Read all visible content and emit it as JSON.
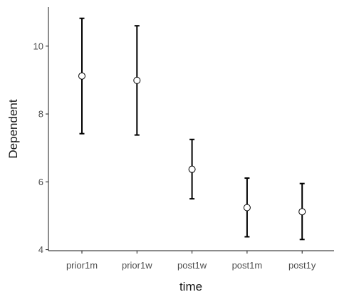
{
  "chart_data": {
    "type": "errorbar",
    "xlabel": "time",
    "ylabel": "Dependent",
    "categories": [
      "prior1m",
      "prior1w",
      "post1w",
      "post1m",
      "post1y"
    ],
    "means": [
      9.12,
      8.99,
      6.37,
      5.24,
      5.12
    ],
    "lower": [
      7.42,
      7.38,
      5.5,
      4.38,
      4.3
    ],
    "upper": [
      10.82,
      10.6,
      7.25,
      6.11,
      5.95
    ],
    "yticks": [
      4,
      6,
      8,
      10
    ],
    "ylim": [
      3.97,
      11.15
    ],
    "grid": false,
    "legend": "none"
  }
}
